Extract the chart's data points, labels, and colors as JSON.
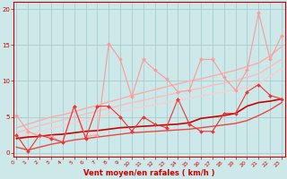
{
  "xlabel": "Vent moyen/en rafales ( km/h )",
  "background_color": "#cce8e8",
  "grid_color": "#aacccc",
  "x_ticks": [
    0,
    1,
    2,
    3,
    4,
    5,
    6,
    7,
    8,
    9,
    10,
    11,
    12,
    13,
    14,
    15,
    16,
    17,
    18,
    19,
    20,
    21,
    22,
    23
  ],
  "ylim": [
    -0.5,
    21
  ],
  "xlim": [
    -0.3,
    23.3
  ],
  "yticks": [
    0,
    5,
    10,
    15,
    20
  ],
  "line1": {
    "x": [
      0,
      1,
      2,
      3,
      4,
      5,
      6,
      7,
      8,
      9,
      10,
      11,
      12,
      13,
      14,
      15,
      16,
      17,
      18,
      19,
      20,
      21,
      22,
      23
    ],
    "y": [
      5.2,
      3.0,
      2.3,
      2.3,
      1.5,
      6.5,
      2.3,
      2.5,
      15.2,
      13.0,
      7.8,
      13.0,
      11.5,
      10.3,
      8.5,
      8.7,
      13.0,
      13.0,
      10.5,
      8.7,
      11.5,
      19.5,
      13.0,
      16.3
    ],
    "color": "#ff9999",
    "marker": "D",
    "markersize": 2.0,
    "linewidth": 0.8
  },
  "line2": {
    "x": [
      0,
      1,
      2,
      3,
      4,
      5,
      6,
      7,
      8,
      9,
      10,
      11,
      12,
      13,
      14,
      15,
      16,
      17,
      18,
      19,
      20,
      21,
      22,
      23
    ],
    "y": [
      3.5,
      4.0,
      4.5,
      5.0,
      5.3,
      5.7,
      6.2,
      6.6,
      7.1,
      7.5,
      8.0,
      8.4,
      8.8,
      9.2,
      9.6,
      10.0,
      10.3,
      10.7,
      11.1,
      11.5,
      12.0,
      12.5,
      13.5,
      14.8
    ],
    "color": "#ffaaaa",
    "marker": null,
    "linewidth": 1.0
  },
  "line3": {
    "x": [
      0,
      1,
      2,
      3,
      4,
      5,
      6,
      7,
      8,
      9,
      10,
      11,
      12,
      13,
      14,
      15,
      16,
      17,
      18,
      19,
      20,
      21,
      22,
      23
    ],
    "y": [
      2.8,
      3.3,
      3.8,
      4.2,
      4.6,
      5.0,
      5.4,
      5.8,
      6.2,
      6.6,
      7.0,
      7.3,
      7.7,
      8.0,
      8.4,
      8.7,
      9.0,
      9.4,
      9.7,
      10.1,
      10.5,
      11.0,
      12.0,
      13.0
    ],
    "color": "#ffbbbb",
    "marker": null,
    "linewidth": 1.0
  },
  "line4": {
    "x": [
      0,
      1,
      2,
      3,
      4,
      5,
      6,
      7,
      8,
      9,
      10,
      11,
      12,
      13,
      14,
      15,
      16,
      17,
      18,
      19,
      20,
      21,
      22,
      23
    ],
    "y": [
      2.0,
      2.5,
      3.0,
      3.4,
      3.8,
      4.2,
      4.6,
      5.0,
      5.4,
      5.7,
      6.1,
      6.4,
      6.7,
      7.0,
      7.3,
      7.6,
      7.9,
      8.2,
      8.5,
      8.8,
      9.2,
      9.7,
      10.7,
      11.7
    ],
    "color": "#ffcccc",
    "marker": null,
    "linewidth": 1.0
  },
  "line5": {
    "x": [
      0,
      1,
      2,
      3,
      4,
      5,
      6,
      7,
      8,
      9,
      10,
      11,
      12,
      13,
      14,
      15,
      16,
      17,
      18,
      19,
      20,
      21,
      22,
      23
    ],
    "y": [
      2.5,
      0.2,
      2.5,
      2.0,
      1.5,
      6.5,
      2.0,
      6.5,
      6.5,
      5.0,
      3.0,
      5.0,
      4.0,
      3.5,
      7.5,
      4.0,
      3.0,
      3.0,
      5.5,
      5.5,
      8.5,
      9.5,
      8.0,
      7.5
    ],
    "color": "#ee3333",
    "marker": "D",
    "markersize": 2.0,
    "linewidth": 0.8
  },
  "line6": {
    "x": [
      0,
      1,
      2,
      3,
      4,
      5,
      6,
      7,
      8,
      9,
      10,
      11,
      12,
      13,
      14,
      15,
      16,
      17,
      18,
      19,
      20,
      21,
      22,
      23
    ],
    "y": [
      2.0,
      2.2,
      2.3,
      2.5,
      2.6,
      2.8,
      3.0,
      3.1,
      3.3,
      3.5,
      3.6,
      3.7,
      3.8,
      3.9,
      4.0,
      4.2,
      4.8,
      5.0,
      5.2,
      5.5,
      6.5,
      7.0,
      7.2,
      7.5
    ],
    "color": "#cc0000",
    "marker": null,
    "linewidth": 1.2
  },
  "line7": {
    "x": [
      0,
      1,
      2,
      3,
      4,
      5,
      6,
      7,
      8,
      9,
      10,
      11,
      12,
      13,
      14,
      15,
      16,
      17,
      18,
      19,
      20,
      21,
      22,
      23
    ],
    "y": [
      0.8,
      0.4,
      0.8,
      1.2,
      1.5,
      1.8,
      2.0,
      2.2,
      2.4,
      2.6,
      2.8,
      2.9,
      3.0,
      3.1,
      3.2,
      3.3,
      3.5,
      3.7,
      3.9,
      4.1,
      4.5,
      5.2,
      6.0,
      7.0
    ],
    "color": "#ee4444",
    "marker": null,
    "linewidth": 1.0
  },
  "tick_label_color": "#cc0000",
  "axis_color": "#cc0000",
  "xlabel_color": "#cc0000",
  "xlabel_fontsize": 6.0,
  "tick_fontsize": 4.5
}
